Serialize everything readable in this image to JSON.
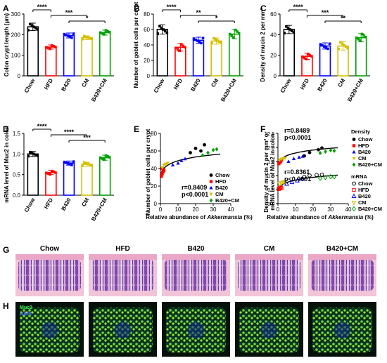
{
  "panel_letters": [
    "A",
    "B",
    "C",
    "D",
    "E",
    "F",
    "G",
    "H"
  ],
  "colors": {
    "Chow": "#000000",
    "HFD": "#ff0000",
    "B420": "#0000ff",
    "CM": "#d4c000",
    "B420+CM": "#00a000"
  },
  "bar_panels": [
    {
      "id": "A",
      "ylabel": "Colon crypt length (μm)",
      "categories": [
        "Chow",
        "HFD",
        "B420",
        "CM",
        "B420+CM"
      ],
      "values": [
        238,
        140,
        196,
        185,
        210
      ],
      "errors": [
        18,
        10,
        12,
        9,
        12
      ],
      "ylim": [
        0,
        300
      ],
      "yticks": [
        "0",
        "100",
        "200",
        "300"
      ],
      "sig": [
        {
          "from": 0,
          "to": 1,
          "text": "****",
          "level": 0
        },
        {
          "from": 1,
          "to": 3,
          "text": "***",
          "level": 1
        },
        {
          "from": 2,
          "to": 4,
          "text": "*",
          "level": 2
        }
      ]
    },
    {
      "id": "B",
      "ylabel": "Number of goblet cells per crypt",
      "categories": [
        "Chow",
        "HFD",
        "B420",
        "CM",
        "B420+CM"
      ],
      "values": [
        60,
        37,
        46,
        45,
        54
      ],
      "errors": [
        6,
        5,
        4,
        4,
        6
      ],
      "ylim": [
        0,
        80
      ],
      "yticks": [
        "0",
        "20",
        "40",
        "60",
        "80"
      ],
      "sig": [
        {
          "from": 0,
          "to": 1,
          "text": "****",
          "level": 0
        },
        {
          "from": 1,
          "to": 3,
          "text": "**",
          "level": 1
        },
        {
          "from": 2,
          "to": 4,
          "text": "*",
          "level": 2
        }
      ]
    },
    {
      "id": "C",
      "ylabel": "Density of mucin 2 per mm²",
      "categories": [
        "Chow",
        "HFD",
        "B420",
        "CM",
        "B420+CM"
      ],
      "values": [
        45,
        19,
        29,
        29,
        37
      ],
      "errors": [
        4,
        3,
        3,
        4,
        4
      ],
      "ylim": [
        0,
        60
      ],
      "yticks": [
        "0",
        "20",
        "40",
        "60"
      ],
      "sig": [
        {
          "from": 0,
          "to": 1,
          "text": "****",
          "level": 0
        },
        {
          "from": 1,
          "to": 3,
          "text": "***",
          "level": 1
        },
        {
          "from": 2,
          "to": 4,
          "text": "**",
          "level": 2
        }
      ]
    },
    {
      "id": "D",
      "ylabel": "mRNA level of Muc2 in colon",
      "categories": [
        "Chow",
        "HFD",
        "B420",
        "CM",
        "B420+CM"
      ],
      "values": [
        1.0,
        0.55,
        0.78,
        0.75,
        0.91
      ],
      "errors": [
        0.06,
        0.05,
        0.05,
        0.05,
        0.06
      ],
      "ylim": [
        0,
        1.5
      ],
      "yticks": [
        "0.0",
        "0.5",
        "1.0",
        "1.5"
      ],
      "sig": [
        {
          "from": 0,
          "to": 1,
          "text": "****",
          "level": 0
        },
        {
          "from": 1,
          "to": 3,
          "text": "****",
          "level": 1
        },
        {
          "from": 2,
          "to": 4,
          "text": "***",
          "level": 2
        }
      ]
    }
  ],
  "chart_data": [
    {
      "type": "bar",
      "categories": [
        "Chow",
        "HFD",
        "B420",
        "CM",
        "B420+CM"
      ],
      "values": [
        238,
        140,
        196,
        185,
        210
      ],
      "ylabel": "Colon crypt length (μm)",
      "ylim": [
        0,
        300
      ]
    },
    {
      "type": "bar",
      "categories": [
        "Chow",
        "HFD",
        "B420",
        "CM",
        "B420+CM"
      ],
      "values": [
        60,
        37,
        46,
        45,
        54
      ],
      "ylabel": "Number of goblet cells per crypt",
      "ylim": [
        0,
        80
      ]
    },
    {
      "type": "bar",
      "categories": [
        "Chow",
        "HFD",
        "B420",
        "CM",
        "B420+CM"
      ],
      "values": [
        45,
        19,
        29,
        29,
        37
      ],
      "ylabel": "Density of mucin 2 per mm²",
      "ylim": [
        0,
        60
      ]
    },
    {
      "type": "bar",
      "categories": [
        "Chow",
        "HFD",
        "B420",
        "CM",
        "B420+CM"
      ],
      "values": [
        1.0,
        0.55,
        0.78,
        0.75,
        0.91
      ],
      "ylabel": "mRNA level of Muc2 in colon",
      "ylim": [
        0,
        1.5
      ]
    },
    {
      "type": "scatter",
      "xlabel": "Relative abundance of Akkermansia (%)",
      "ylabel": "Number of goblet cells per crypt",
      "xlim": [
        0,
        40
      ],
      "ylim": [
        0,
        80
      ],
      "annotation": [
        "r=0.8409",
        "p<0.0001"
      ],
      "series": [
        {
          "name": "Chow",
          "points": [
            [
              17,
              58
            ],
            [
              20,
              63
            ],
            [
              23,
              60
            ],
            [
              25,
              67
            ]
          ]
        },
        {
          "name": "HFD",
          "points": [
            [
              0.5,
              31
            ],
            [
              1,
              34
            ],
            [
              1.5,
              36
            ],
            [
              2,
              38
            ],
            [
              1,
              40
            ]
          ]
        },
        {
          "name": "B420",
          "points": [
            [
              7,
              44
            ],
            [
              10,
              46
            ],
            [
              12,
              49
            ],
            [
              14,
              51
            ]
          ]
        },
        {
          "name": "CM",
          "points": [
            [
              1,
              41
            ],
            [
              2,
              44
            ],
            [
              3,
              45
            ],
            [
              4,
              46
            ]
          ]
        },
        {
          "name": "B420+CM",
          "points": [
            [
              24,
              55
            ],
            [
              27,
              58
            ],
            [
              30,
              61
            ],
            [
              32,
              62
            ]
          ]
        }
      ]
    },
    {
      "type": "scatter",
      "xlabel": "Relative abundance of Akkermansia (%)",
      "ylabel": "Density of mucin 2 per mm² or mRNA level of Muc2 in colon",
      "xlim": [
        0,
        40
      ],
      "ylim": [
        0,
        2.5
      ],
      "annotation_top": [
        "r=0.8489",
        "p<0.0001"
      ],
      "annotation_bottom": [
        "r=0.8361",
        "p<0.0001"
      ],
      "series": [
        {
          "name": "Chow",
          "points": [
            [
              15,
              1.7
            ],
            [
              18,
              1.82
            ],
            [
              23,
              1.92
            ],
            [
              25,
              1.98
            ]
          ]
        },
        {
          "name": "HFD",
          "points": [
            [
              0.5,
              1.42
            ],
            [
              1,
              1.46
            ],
            [
              1.5,
              1.5
            ],
            [
              2,
              1.55
            ]
          ]
        },
        {
          "name": "B420",
          "points": [
            [
              6,
              1.5
            ],
            [
              9,
              1.6
            ],
            [
              12,
              1.65
            ],
            [
              14,
              1.68
            ]
          ]
        },
        {
          "name": "CM",
          "points": [
            [
              1,
              1.56
            ],
            [
              2,
              1.58
            ],
            [
              3,
              1.6
            ],
            [
              4,
              1.62
            ]
          ]
        },
        {
          "name": "B420+CM",
          "points": [
            [
              24,
              1.8
            ],
            [
              27,
              1.85
            ],
            [
              30,
              1.9
            ],
            [
              32,
              1.88
            ]
          ]
        },
        {
          "name": "Chow mRNA",
          "points": [
            [
              15,
              0.95
            ],
            [
              18,
              1.0
            ],
            [
              22,
              1.02
            ],
            [
              25,
              1.03
            ]
          ]
        },
        {
          "name": "HFD mRNA",
          "points": [
            [
              0.5,
              0.52
            ],
            [
              1,
              0.55
            ],
            [
              1.5,
              0.58
            ],
            [
              2,
              0.55
            ]
          ]
        },
        {
          "name": "B420 mRNA",
          "points": [
            [
              5,
              0.7
            ],
            [
              8,
              0.76
            ],
            [
              11,
              0.82
            ],
            [
              14,
              0.88
            ]
          ]
        },
        {
          "name": "CM mRNA",
          "points": [
            [
              1,
              0.7
            ],
            [
              2,
              0.73
            ],
            [
              3,
              0.76
            ],
            [
              4,
              0.78
            ]
          ]
        },
        {
          "name": "B420+CM mRNA",
          "points": [
            [
              24,
              0.9
            ],
            [
              27,
              0.93
            ],
            [
              30,
              0.96
            ],
            [
              32,
              0.95
            ]
          ]
        }
      ]
    }
  ],
  "scatter_E": {
    "ylabel": "Number of goblet cells per crypt",
    "xlabel_prefix": "Relative abundance of ",
    "xlabel_italic": "Akkermansia",
    "xlabel_suffix": " (%)",
    "yticks": [
      "0",
      "20",
      "40",
      "60",
      "80"
    ],
    "xticks": [
      "0",
      "10",
      "20",
      "30",
      "40"
    ],
    "r_text": "r=0.8409",
    "p_text": "p<0.0001",
    "legend": [
      "Chow",
      "HFD",
      "B420",
      "CM",
      "B420+CM"
    ]
  },
  "scatter_F": {
    "ylabel_line1": "Density of mucin 2 per mm² or",
    "ylabel_line2": "mRNA level of Muc2 in colon",
    "xlabel_prefix": "Relative abundance of ",
    "xlabel_italic": "Akkermansia",
    "xlabel_suffix": " (%)",
    "yticks": [
      "0.0",
      "0.5",
      "1.0",
      "1.5",
      "2.0",
      "2.5"
    ],
    "xticks": [
      "0",
      "10",
      "20",
      "30",
      "40"
    ],
    "r1_text": "r=0.8489",
    "p1_text": "p<0.0001",
    "r2_text": "r=0.8361",
    "p2_text": "p<0.0001",
    "legend_title_1": "Density",
    "legend_title_2": "mRNA",
    "legend": [
      "Chow",
      "HFD",
      "B420",
      "CM",
      "B420+CM"
    ]
  },
  "micrographs": {
    "groups": [
      "Chow",
      "HFD",
      "B420",
      "CM",
      "B420+CM"
    ],
    "if_labels": [
      "Muc2",
      "DAPI"
    ]
  }
}
